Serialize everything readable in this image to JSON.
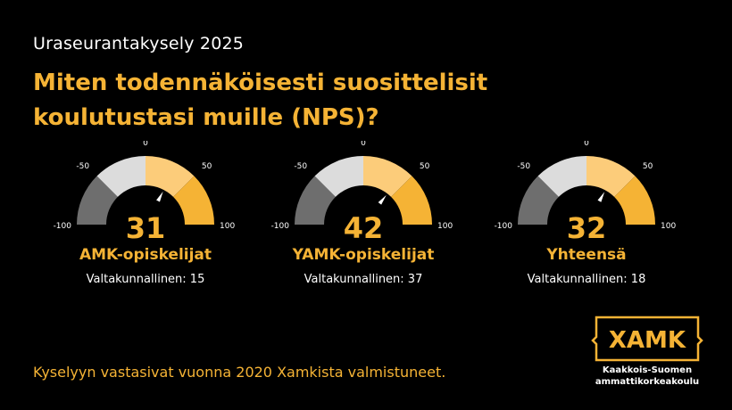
{
  "survey_title": "Uraseurantakysely 2025",
  "headline": {
    "line1": "Miten todennäköisesti suosittelisit",
    "line2": "koulutustasi muille (NPS)?"
  },
  "gauge_ticks": {
    "min": "-100",
    "low": "-50",
    "mid": "0",
    "high": "50",
    "max": "100"
  },
  "gauges": [
    {
      "score": "31",
      "value": 31,
      "group": "AMK-opiskelijat",
      "national": "Valtakunnallinen: 15"
    },
    {
      "score": "42",
      "value": 42,
      "group": "YAMK-opiskelijat",
      "national": "Valtakunnallinen: 37"
    },
    {
      "score": "32",
      "value": 32,
      "group": "Yhteensä",
      "national": "Valtakunnallinen: 18"
    }
  ],
  "footnote": "Kyselyyn vastasivat vuonna 2020 Xamkista valmistuneet.",
  "logo": {
    "wordmark": "XAMK",
    "line1": "Kaakkois-Suomen",
    "line2": "ammattikorkeakoulu"
  },
  "colors": {
    "background": "#000000",
    "accent": "#f5b335",
    "segment_dark": "#6e6e6e",
    "segment_light": "#dcdcdc",
    "segment_pale": "#fccc7a",
    "segment_orange": "#f5b335"
  }
}
